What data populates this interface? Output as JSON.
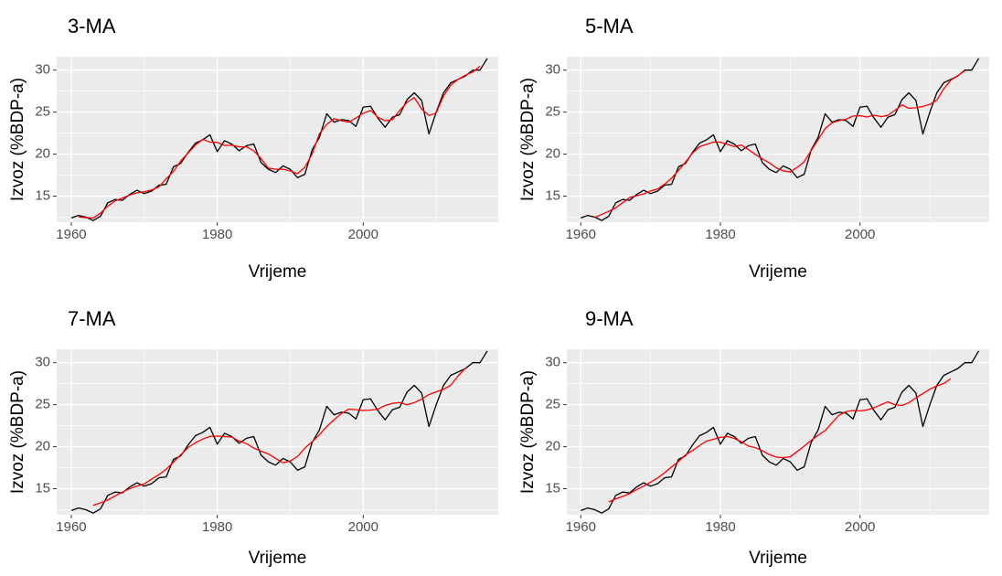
{
  "chart_data": [
    {
      "type": "line",
      "title": "3-MA",
      "x_label": "Vrijeme",
      "y_label": "Izvoz (%BDP-a)",
      "x": [
        1960,
        1961,
        1962,
        1963,
        1964,
        1965,
        1966,
        1967,
        1968,
        1969,
        1970,
        1971,
        1972,
        1973,
        1974,
        1975,
        1976,
        1977,
        1978,
        1979,
        1980,
        1981,
        1982,
        1983,
        1984,
        1985,
        1986,
        1987,
        1988,
        1989,
        1990,
        1991,
        1992,
        1993,
        1994,
        1995,
        1996,
        1997,
        1998,
        1999,
        2000,
        2001,
        2002,
        2003,
        2004,
        2005,
        2006,
        2007,
        2008,
        2009,
        2010,
        2011,
        2012,
        2013,
        2014,
        2015,
        2016,
        2017
      ],
      "series": [
        {
          "color": "#000000",
          "values": [
            12.4,
            12.7,
            12.5,
            12.1,
            12.6,
            14.2,
            14.6,
            14.5,
            15.2,
            15.7,
            15.3,
            15.6,
            16.3,
            16.4,
            18.5,
            18.9,
            20.2,
            21.3,
            21.7,
            22.3,
            20.3,
            21.6,
            21.2,
            20.4,
            21.0,
            21.2,
            19.0,
            18.2,
            17.8,
            18.6,
            18.2,
            17.2,
            17.6,
            20.5,
            22.0,
            24.8,
            23.8,
            24.1,
            24.0,
            23.3,
            25.6,
            25.7,
            24.3,
            23.2,
            24.4,
            24.7,
            26.5,
            27.3,
            26.4,
            22.4,
            25.0,
            27.3,
            28.5,
            28.9,
            29.3,
            30.0,
            30.0,
            31.4
          ]
        },
        {
          "color": "#ff0000",
          "values": [
            null,
            12.53,
            12.43,
            12.4,
            12.97,
            13.8,
            14.43,
            14.77,
            15.13,
            15.4,
            15.53,
            15.73,
            16.1,
            17.07,
            17.93,
            19.2,
            20.13,
            21.07,
            21.77,
            21.43,
            21.4,
            21.03,
            21.07,
            20.87,
            20.87,
            20.4,
            19.47,
            18.33,
            18.2,
            18.2,
            18.0,
            17.67,
            18.43,
            20.03,
            22.43,
            23.53,
            24.23,
            23.97,
            23.8,
            24.3,
            24.87,
            25.2,
            24.4,
            23.97,
            24.1,
            25.2,
            26.17,
            26.73,
            25.37,
            24.6,
            24.9,
            26.93,
            28.23,
            28.9,
            29.4,
            29.77,
            30.47,
            null
          ]
        }
      ],
      "xlim": [
        1958,
        2018.5
      ],
      "xticks": [
        1960,
        1980,
        2000
      ],
      "x_minor_ticks": [
        1970,
        1990,
        2010
      ],
      "ylim": [
        11.9,
        31.6
      ],
      "yticks": [
        15,
        20,
        25,
        30
      ],
      "y_minor_ticks": [
        12.5,
        17.5,
        22.5,
        27.5
      ],
      "grid": true
    },
    {
      "type": "line",
      "title": "5-MA",
      "x_label": "Vrijeme",
      "y_label": "Izvoz (%BDP-a)",
      "x": [
        1960,
        1961,
        1962,
        1963,
        1964,
        1965,
        1966,
        1967,
        1968,
        1969,
        1970,
        1971,
        1972,
        1973,
        1974,
        1975,
        1976,
        1977,
        1978,
        1979,
        1980,
        1981,
        1982,
        1983,
        1984,
        1985,
        1986,
        1987,
        1988,
        1989,
        1990,
        1991,
        1992,
        1993,
        1994,
        1995,
        1996,
        1997,
        1998,
        1999,
        2000,
        2001,
        2002,
        2003,
        2004,
        2005,
        2006,
        2007,
        2008,
        2009,
        2010,
        2011,
        2012,
        2013,
        2014,
        2015,
        2016,
        2017
      ],
      "series": [
        {
          "color": "#000000",
          "values": [
            12.4,
            12.7,
            12.5,
            12.1,
            12.6,
            14.2,
            14.6,
            14.5,
            15.2,
            15.7,
            15.3,
            15.6,
            16.3,
            16.4,
            18.5,
            18.9,
            20.2,
            21.3,
            21.7,
            22.3,
            20.3,
            21.6,
            21.2,
            20.4,
            21.0,
            21.2,
            19.0,
            18.2,
            17.8,
            18.6,
            18.2,
            17.2,
            17.6,
            20.5,
            22.0,
            24.8,
            23.8,
            24.1,
            24.0,
            23.3,
            25.6,
            25.7,
            24.3,
            23.2,
            24.4,
            24.7,
            26.5,
            27.3,
            26.4,
            22.4,
            25.0,
            27.3,
            28.5,
            28.9,
            29.3,
            30.0,
            30.0,
            31.4
          ]
        },
        {
          "color": "#ff0000",
          "values": [
            null,
            null,
            12.46,
            12.82,
            13.2,
            13.6,
            14.22,
            14.84,
            15.06,
            15.26,
            15.62,
            15.86,
            16.42,
            17.14,
            18.06,
            19.06,
            20.12,
            20.88,
            21.16,
            21.44,
            21.42,
            21.16,
            20.9,
            21.08,
            20.56,
            19.96,
            19.44,
            18.96,
            18.36,
            18.0,
            17.88,
            18.42,
            19.1,
            20.42,
            21.74,
            23.04,
            23.74,
            24.0,
            24.16,
            24.54,
            24.58,
            24.42,
            24.64,
            24.46,
            24.62,
            25.22,
            25.86,
            25.46,
            25.52,
            25.68,
            25.92,
            26.42,
            27.8,
            28.8,
            29.34,
            29.92,
            null,
            null
          ]
        }
      ],
      "xlim": [
        1958,
        2018.5
      ],
      "xticks": [
        1960,
        1980,
        2000
      ],
      "x_minor_ticks": [
        1970,
        1990,
        2010
      ],
      "ylim": [
        11.9,
        31.6
      ],
      "yticks": [
        15,
        20,
        25,
        30
      ],
      "y_minor_ticks": [
        12.5,
        17.5,
        22.5,
        27.5
      ],
      "grid": true
    },
    {
      "type": "line",
      "title": "7-MA",
      "x_label": "Vrijeme",
      "y_label": "Izvoz (%BDP-a)",
      "x": [
        1960,
        1961,
        1962,
        1963,
        1964,
        1965,
        1966,
        1967,
        1968,
        1969,
        1970,
        1971,
        1972,
        1973,
        1974,
        1975,
        1976,
        1977,
        1978,
        1979,
        1980,
        1981,
        1982,
        1983,
        1984,
        1985,
        1986,
        1987,
        1988,
        1989,
        1990,
        1991,
        1992,
        1993,
        1994,
        1995,
        1996,
        1997,
        1998,
        1999,
        2000,
        2001,
        2002,
        2003,
        2004,
        2005,
        2006,
        2007,
        2008,
        2009,
        2010,
        2011,
        2012,
        2013,
        2014,
        2015,
        2016,
        2017
      ],
      "series": [
        {
          "color": "#000000",
          "values": [
            12.4,
            12.7,
            12.5,
            12.1,
            12.6,
            14.2,
            14.6,
            14.5,
            15.2,
            15.7,
            15.3,
            15.6,
            16.3,
            16.4,
            18.5,
            18.9,
            20.2,
            21.3,
            21.7,
            22.3,
            20.3,
            21.6,
            21.2,
            20.4,
            21.0,
            21.2,
            19.0,
            18.2,
            17.8,
            18.6,
            18.2,
            17.2,
            17.6,
            20.5,
            22.0,
            24.8,
            23.8,
            24.1,
            24.0,
            23.3,
            25.6,
            25.7,
            24.3,
            23.2,
            24.4,
            24.7,
            26.5,
            27.3,
            26.4,
            22.4,
            25.0,
            27.3,
            28.5,
            28.9,
            29.3,
            30.0,
            30.0,
            31.4
          ]
        },
        {
          "color": "#ff0000",
          "values": [
            null,
            null,
            null,
            13.01,
            13.31,
            13.67,
            14.13,
            14.59,
            15.01,
            15.31,
            15.57,
            16.14,
            16.67,
            17.31,
            18.17,
            19.04,
            19.9,
            20.46,
            20.9,
            21.23,
            21.26,
            21.21,
            21.14,
            20.67,
            20.37,
            19.83,
            19.46,
            19.14,
            18.6,
            18.09,
            18.3,
            18.84,
            19.84,
            20.59,
            21.43,
            22.4,
            23.21,
            23.94,
            24.47,
            24.4,
            24.31,
            24.36,
            24.46,
            24.91,
            25.16,
            25.26,
            24.99,
            25.24,
            25.66,
            26.2,
            26.54,
            26.83,
            27.34,
            28.43,
            29.34,
            null,
            null,
            null
          ]
        }
      ],
      "xlim": [
        1958,
        2018.5
      ],
      "xticks": [
        1960,
        1980,
        2000
      ],
      "x_minor_ticks": [
        1970,
        1990,
        2010
      ],
      "ylim": [
        11.9,
        31.6
      ],
      "yticks": [
        15,
        20,
        25,
        30
      ],
      "y_minor_ticks": [
        12.5,
        17.5,
        22.5,
        27.5
      ],
      "grid": true
    },
    {
      "type": "line",
      "title": "9-MA",
      "x_label": "Vrijeme",
      "y_label": "Izvoz (%BDP-a)",
      "x": [
        1960,
        1961,
        1962,
        1963,
        1964,
        1965,
        1966,
        1967,
        1968,
        1969,
        1970,
        1971,
        1972,
        1973,
        1974,
        1975,
        1976,
        1977,
        1978,
        1979,
        1980,
        1981,
        1982,
        1983,
        1984,
        1985,
        1986,
        1987,
        1988,
        1989,
        1990,
        1991,
        1992,
        1993,
        1994,
        1995,
        1996,
        1997,
        1998,
        1999,
        2000,
        2001,
        2002,
        2003,
        2004,
        2005,
        2006,
        2007,
        2008,
        2009,
        2010,
        2011,
        2012,
        2013,
        2014,
        2015,
        2016,
        2017
      ],
      "series": [
        {
          "color": "#000000",
          "values": [
            12.4,
            12.7,
            12.5,
            12.1,
            12.6,
            14.2,
            14.6,
            14.5,
            15.2,
            15.7,
            15.3,
            15.6,
            16.3,
            16.4,
            18.5,
            18.9,
            20.2,
            21.3,
            21.7,
            22.3,
            20.3,
            21.6,
            21.2,
            20.4,
            21.0,
            21.2,
            19.0,
            18.2,
            17.8,
            18.6,
            18.2,
            17.2,
            17.6,
            20.5,
            22.0,
            24.8,
            23.8,
            24.1,
            24.0,
            23.3,
            25.6,
            25.7,
            24.3,
            23.2,
            24.4,
            24.7,
            26.5,
            27.3,
            26.4,
            22.4,
            25.0,
            27.3,
            28.5,
            28.9,
            29.3,
            30.0,
            30.0,
            31.4
          ]
        },
        {
          "color": "#ff0000",
          "values": [
            null,
            null,
            null,
            null,
            13.42,
            13.79,
            14.08,
            14.42,
            14.89,
            15.31,
            15.79,
            16.27,
            16.9,
            17.58,
            18.24,
            19.02,
            19.54,
            20.13,
            20.67,
            20.88,
            21.11,
            21.22,
            20.97,
            20.58,
            20.08,
            19.89,
            19.51,
            19.07,
            18.76,
            18.7,
            18.79,
            19.43,
            20.06,
            20.76,
            21.36,
            21.92,
            22.86,
            23.76,
            24.18,
            24.31,
            24.27,
            24.37,
            24.63,
            25.0,
            25.34,
            24.99,
            24.91,
            25.24,
            25.83,
            26.33,
            26.84,
            27.23,
            27.53,
            28.09,
            null,
            null,
            null,
            null
          ]
        }
      ],
      "xlim": [
        1958,
        2018.5
      ],
      "xticks": [
        1960,
        1980,
        2000
      ],
      "x_minor_ticks": [
        1970,
        1990,
        2010
      ],
      "ylim": [
        11.9,
        31.6
      ],
      "yticks": [
        15,
        20,
        25,
        30
      ],
      "y_minor_ticks": [
        12.5,
        17.5,
        22.5,
        27.5
      ],
      "grid": true
    }
  ]
}
